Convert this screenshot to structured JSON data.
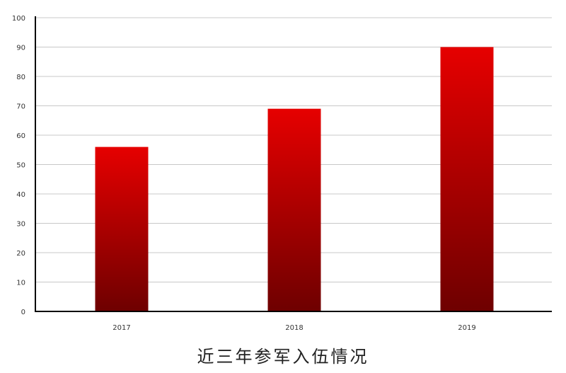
{
  "chart_data": {
    "type": "bar",
    "title": "近三年参军入伍情况",
    "categories": [
      "2017",
      "2018",
      "2019"
    ],
    "values": [
      56,
      69,
      90
    ],
    "ylim": [
      0,
      100
    ],
    "yticks": [
      0,
      10,
      20,
      30,
      40,
      50,
      60,
      70,
      80,
      90,
      100
    ],
    "xlabel": "",
    "ylabel": "",
    "grid": true,
    "colors": {
      "bar_top": "#e60000",
      "bar_bottom": "#6e0000",
      "grid": "#c8c8c8",
      "axis": "#000000"
    }
  }
}
